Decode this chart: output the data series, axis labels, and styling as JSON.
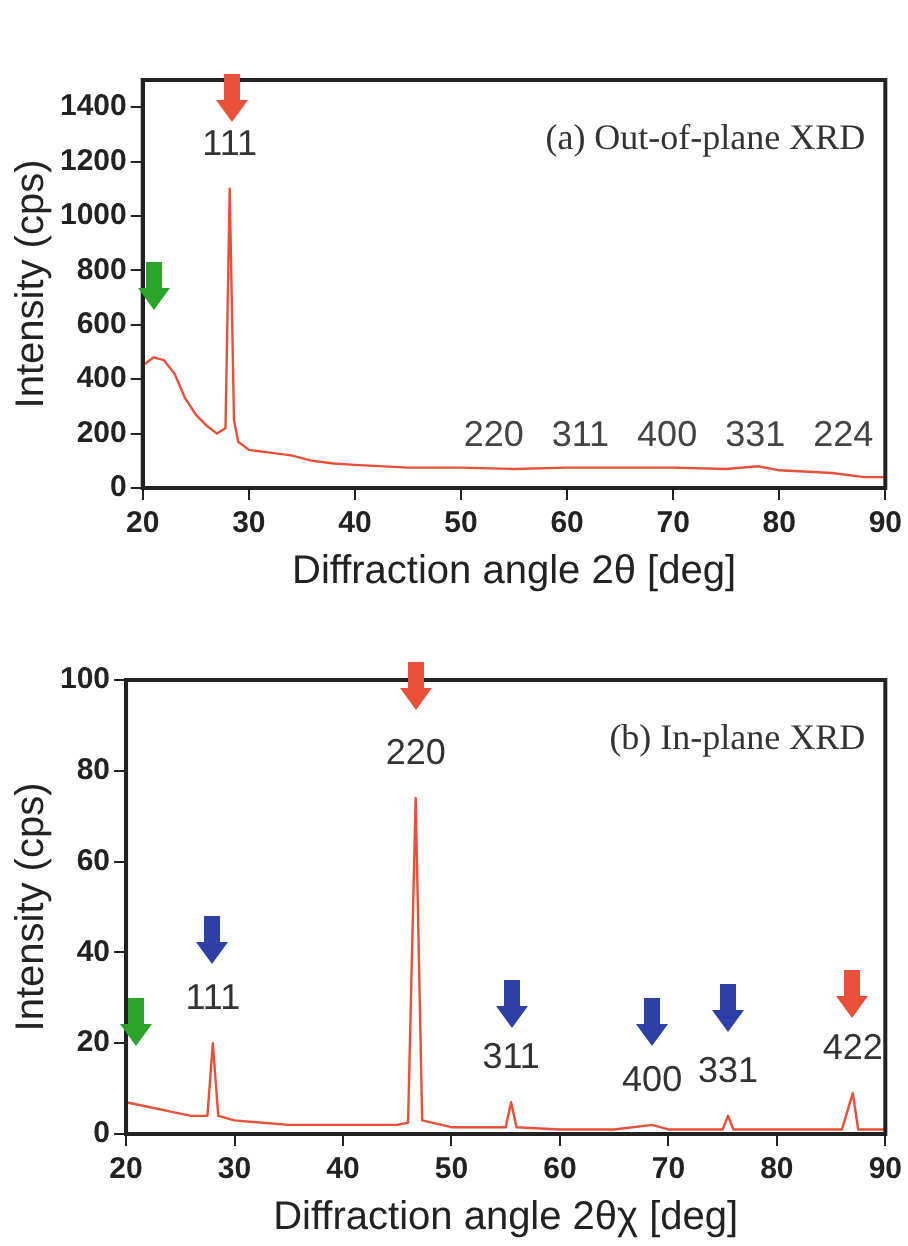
{
  "chart_data": [
    {
      "type": "line",
      "xlabel": "Diffraction angle 2θ [deg]",
      "ylabel": "Intensity (cps)",
      "xlim": [
        20,
        90
      ],
      "ylim": [
        0,
        1500
      ],
      "xticks": [
        20,
        30,
        40,
        50,
        60,
        70,
        80,
        90
      ],
      "yticks": [
        0,
        200,
        400,
        600,
        800,
        1000,
        1200,
        1400
      ],
      "grid": false,
      "legend": false,
      "marker": "none",
      "series": [
        {
          "color": "#e8503a",
          "x": [
            20,
            21,
            22,
            23,
            24,
            25,
            26,
            27,
            27.8,
            28.2,
            28.6,
            29,
            30,
            32,
            34,
            36,
            38,
            40,
            45,
            50,
            55,
            60,
            65,
            70,
            75,
            78,
            80,
            85,
            88,
            90
          ],
          "values": [
            450,
            480,
            470,
            420,
            330,
            270,
            230,
            200,
            220,
            1100,
            250,
            170,
            140,
            130,
            120,
            100,
            90,
            85,
            75,
            75,
            70,
            75,
            75,
            75,
            70,
            80,
            65,
            55,
            40,
            40
          ]
        }
      ],
      "annotations": [
        {
          "text": "111",
          "x": 28.2,
          "y": 1100
        },
        "(a) Out-of-plane XRD",
        "220",
        "311",
        "400",
        "331",
        "224"
      ]
    },
    {
      "type": "line",
      "xlabel": "Diffraction angle 2θχ [deg]",
      "ylabel": "Intensity (cps)",
      "xlim": [
        20,
        90
      ],
      "ylim": [
        0,
        100
      ],
      "xticks": [
        20,
        30,
        40,
        50,
        60,
        70,
        80,
        90
      ],
      "yticks": [
        0,
        20,
        40,
        60,
        80,
        100
      ],
      "grid": false,
      "legend": false,
      "marker": "none",
      "series": [
        {
          "color": "#e8503a",
          "x": [
            20,
            22,
            24,
            26,
            27.5,
            28,
            28.5,
            30,
            35,
            40,
            45,
            46,
            46.7,
            47.3,
            50,
            55,
            55.5,
            56,
            60,
            65,
            68.5,
            70,
            75,
            75.5,
            76,
            80,
            86,
            87,
            87.5,
            90
          ],
          "values": [
            7,
            6,
            5,
            4,
            4,
            20,
            4,
            3,
            2,
            2,
            2,
            2.5,
            74,
            3,
            1.5,
            1.5,
            7,
            1.5,
            1,
            1,
            2,
            1,
            1,
            4,
            1,
            1,
            1,
            9,
            1,
            1
          ]
        }
      ],
      "annotations": [
        {
          "text": "220",
          "x": 46.7,
          "y": 74
        },
        "(b) In-plane XRD",
        {
          "text": "111",
          "x": 28,
          "y": 20
        },
        {
          "text": "311",
          "x": 55.5,
          "y": 7
        },
        {
          "text": "400",
          "x": 68.5,
          "y": 2
        },
        {
          "text": "331",
          "x": 75.5,
          "y": 4
        },
        {
          "text": "422",
          "x": 87,
          "y": 9
        }
      ]
    }
  ]
}
